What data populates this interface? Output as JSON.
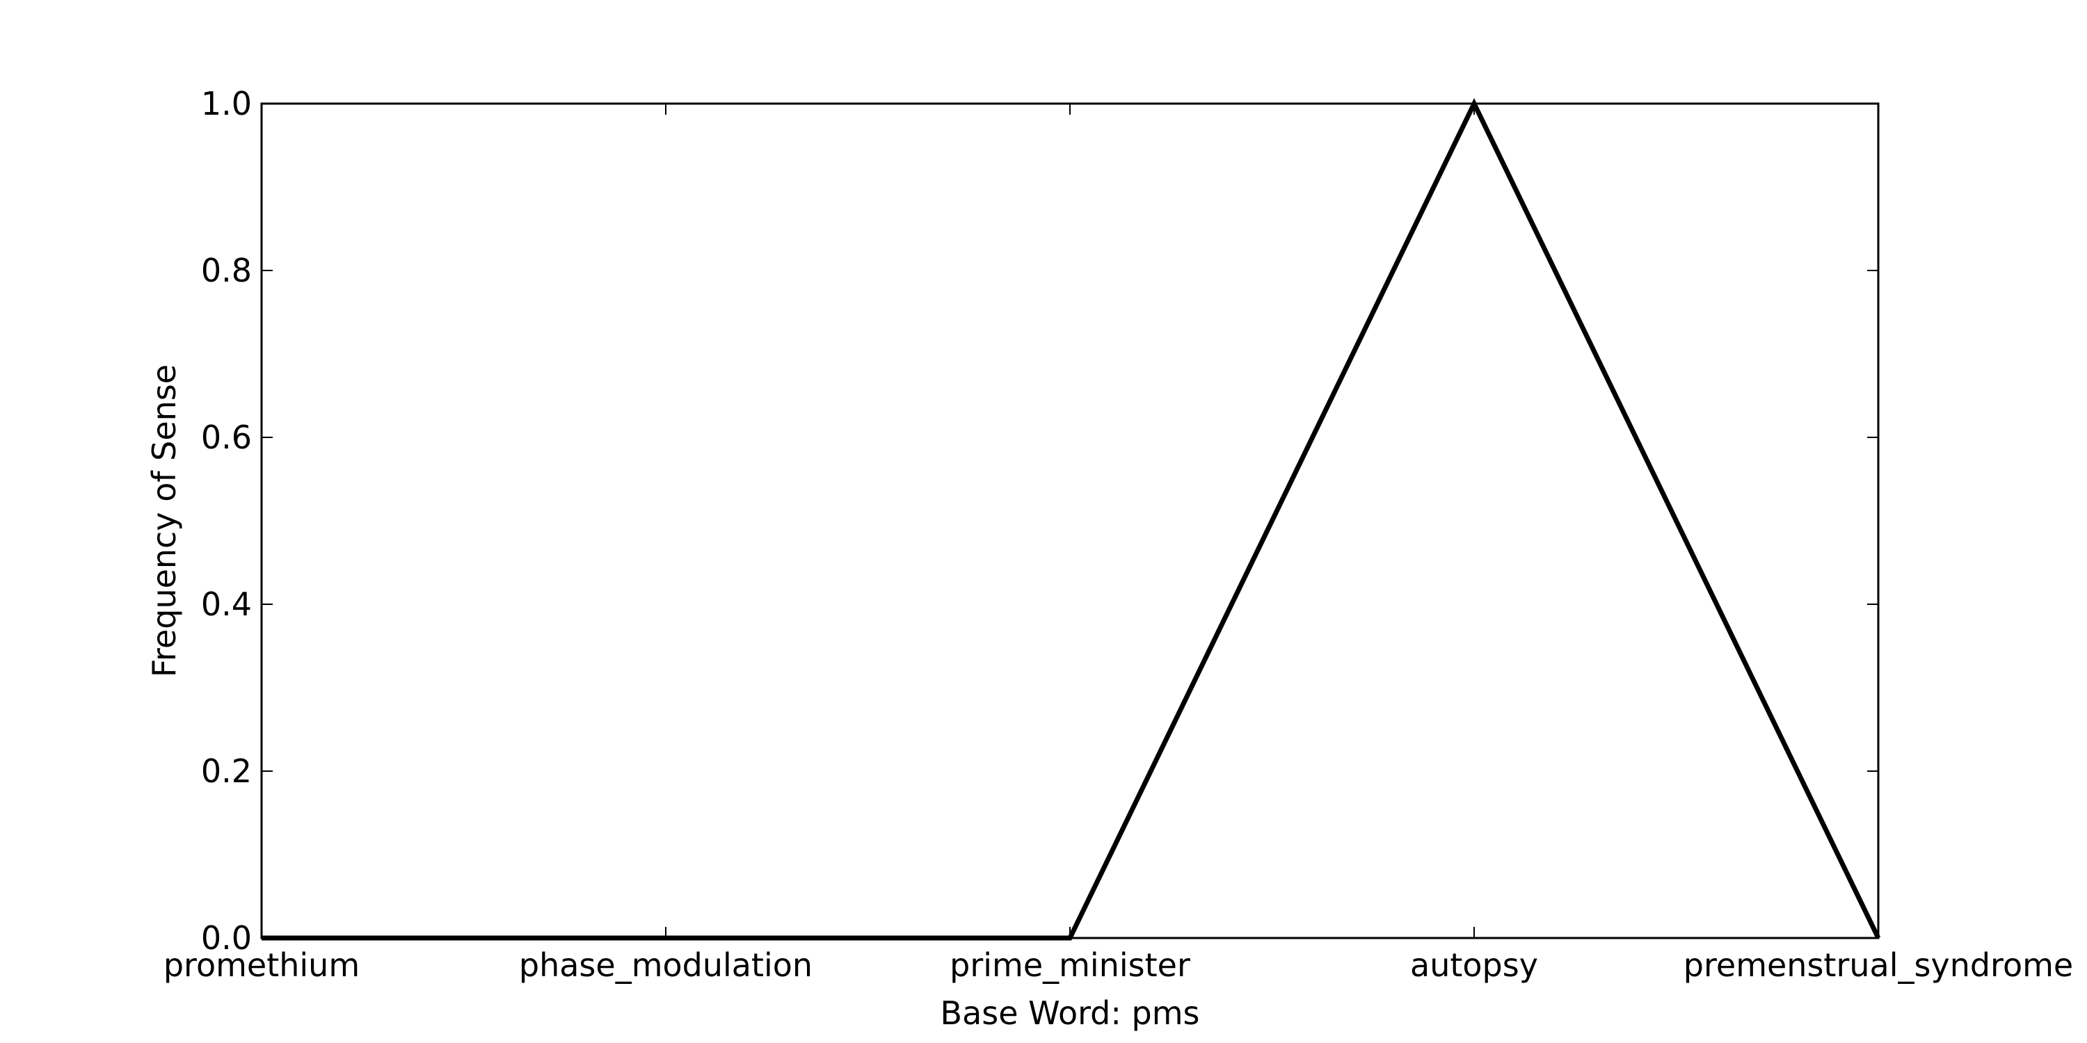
{
  "chart_data": {
    "type": "line",
    "title": "",
    "xlabel": "Base Word: pms",
    "ylabel": "Frequency of Sense",
    "categories": [
      "promethium",
      "phase_modulation",
      "prime_minister",
      "autopsy",
      "premenstrual_syndrome"
    ],
    "series": [
      {
        "values": [
          0.0,
          0.0,
          0.0,
          1.0,
          0.0
        ]
      }
    ],
    "ylim": [
      0,
      1.0
    ],
    "yticks": [
      "0.0",
      "0.2",
      "0.4",
      "0.6",
      "0.8",
      "1.0"
    ],
    "grid": false,
    "line_color": "#000000"
  }
}
